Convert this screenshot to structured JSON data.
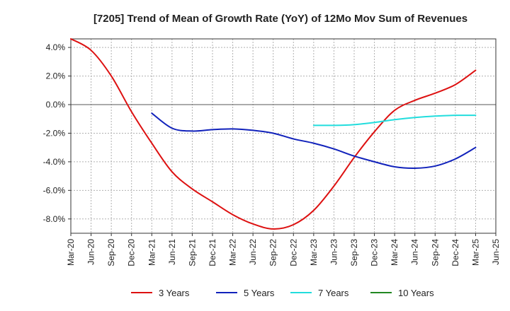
{
  "chart_data": {
    "type": "line",
    "title": "[7205]  Trend of Mean of Growth Rate (YoY) of 12Mo Mov Sum of Revenues",
    "xlabel": "",
    "ylabel": "",
    "ylim": [
      -9.0,
      4.6
    ],
    "yticks": [
      4.0,
      2.0,
      0.0,
      -2.0,
      -4.0,
      -6.0,
      -8.0
    ],
    "ytick_labels": [
      "4.0%",
      "2.0%",
      "0.0%",
      "-2.0%",
      "-4.0%",
      "-6.0%",
      "-8.0%"
    ],
    "xtick_labels": [
      "Mar-20",
      "Jun-20",
      "Sep-20",
      "Dec-20",
      "Mar-21",
      "Jun-21",
      "Sep-21",
      "Dec-21",
      "Mar-22",
      "Jun-22",
      "Sep-22",
      "Dec-22",
      "Mar-23",
      "Jun-23",
      "Sep-23",
      "Dec-23",
      "Mar-24",
      "Jun-24",
      "Sep-24",
      "Dec-24",
      "Mar-25",
      "Jun-25"
    ],
    "grid": true,
    "legend_position": "bottom",
    "series": [
      {
        "name": "3 Years",
        "color": "#dd1111",
        "start_index": 0,
        "values": [
          4.6,
          3.8,
          2.0,
          -0.5,
          -2.7,
          -4.7,
          -5.9,
          -6.8,
          -7.7,
          -8.35,
          -8.7,
          -8.4,
          -7.4,
          -5.7,
          -3.7,
          -1.9,
          -0.4,
          0.3,
          0.8,
          1.4,
          2.4
        ]
      },
      {
        "name": "5 Years",
        "color": "#1122bb",
        "start_index": 4,
        "values": [
          -0.6,
          -1.65,
          -1.85,
          -1.75,
          -1.7,
          -1.8,
          -2.0,
          -2.4,
          -2.7,
          -3.1,
          -3.6,
          -4.0,
          -4.35,
          -4.45,
          -4.3,
          -3.8,
          -3.0
        ]
      },
      {
        "name": "7 Years",
        "color": "#22dddd",
        "start_index": 12,
        "values": [
          -1.45,
          -1.45,
          -1.4,
          -1.25,
          -1.05,
          -0.9,
          -0.8,
          -0.75,
          -0.75
        ]
      },
      {
        "name": "10 Years",
        "color": "#228822",
        "start_index": 0,
        "values": []
      }
    ]
  }
}
